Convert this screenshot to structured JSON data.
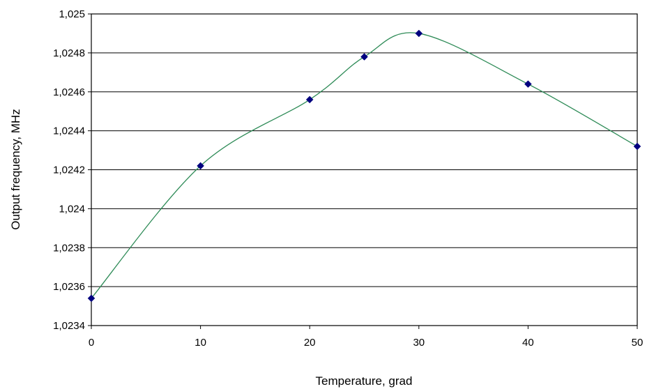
{
  "chart_data": {
    "type": "line",
    "title": "",
    "xlabel": "Temperature, grad",
    "ylabel": "Output frequency, MHz",
    "xlim": [
      0,
      50
    ],
    "ylim": [
      1.0234,
      1.025
    ],
    "x_ticks": [
      0,
      10,
      20,
      30,
      40,
      50
    ],
    "x_tick_labels": [
      "0",
      "10",
      "20",
      "30",
      "40",
      "50"
    ],
    "y_ticks": [
      1.0234,
      1.0236,
      1.0238,
      1.024,
      1.0242,
      1.0244,
      1.0246,
      1.0248,
      1.025
    ],
    "y_tick_labels": [
      "1,0234",
      "1,0236",
      "1,0238",
      "1,024",
      "1,0242",
      "1,0244",
      "1,0246",
      "1,0248",
      "1,025"
    ],
    "grid": "horizontal",
    "legend": "none",
    "smoothed": true,
    "series": [
      {
        "x": [
          0,
          10,
          20,
          25,
          30,
          40,
          50
        ],
        "y": [
          1.02354,
          1.02422,
          1.02456,
          1.02478,
          1.0249,
          1.02464,
          1.02432
        ],
        "line_color": "#2e8b57",
        "marker": "diamond",
        "marker_color": "#00007f"
      }
    ]
  }
}
